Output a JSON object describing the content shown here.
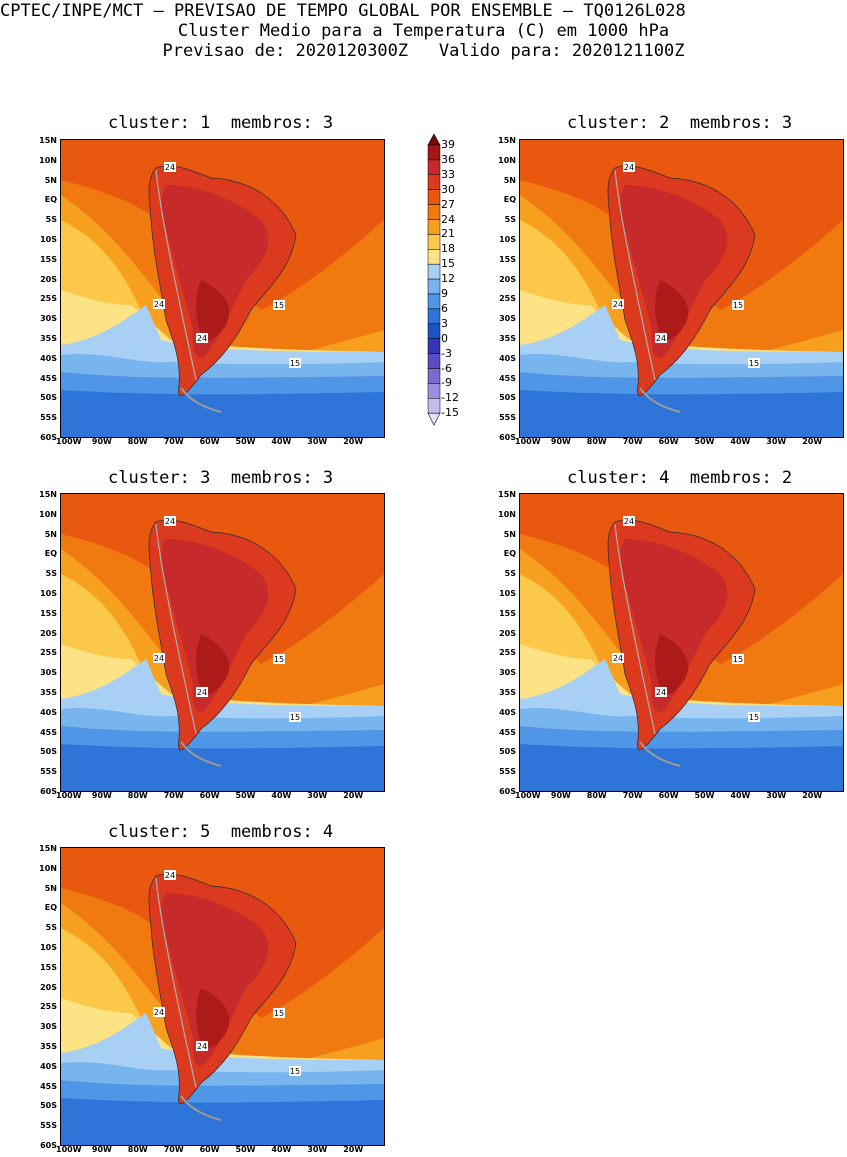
{
  "header": {
    "line1": "CPTEC/INPE/MCT – PREVISAO DE TEMPO GLOBAL POR ENSEMBLE – TQ0126L028",
    "line2": "Cluster Medio para a Temperatura (C) em 1000 hPa",
    "line3": "Previsao de: 2020120300Z   Valido para: 2020121100Z"
  },
  "panels": [
    {
      "title": "cluster: 1  membros: 3"
    },
    {
      "title": "cluster: 2  membros: 3"
    },
    {
      "title": "cluster: 3  membros: 3"
    },
    {
      "title": "cluster: 4  membros: 2"
    },
    {
      "title": "cluster: 5  membros: 4"
    }
  ],
  "y_ticks": [
    "15N",
    "10N",
    "5N",
    "EQ",
    "5S",
    "10S",
    "15S",
    "20S",
    "25S",
    "30S",
    "35S",
    "40S",
    "45S",
    "50S",
    "55S",
    "60S"
  ],
  "x_ticks": [
    "100W",
    "90W",
    "80W",
    "70W",
    "60W",
    "50W",
    "40W",
    "30W",
    "20W"
  ],
  "contour_labels": [
    "24",
    "24",
    "15",
    "24",
    "15"
  ],
  "colorbar": {
    "labels": [
      "39",
      "36",
      "33",
      "30",
      "27",
      "24",
      "21",
      "18",
      "15",
      "12",
      "9",
      "6",
      "3",
      "0",
      "-3",
      "-6",
      "-9",
      "-12",
      "-15"
    ],
    "colors": [
      "#7a0a0a",
      "#a61616",
      "#c62a2a",
      "#dc3a1e",
      "#e8580e",
      "#f07a10",
      "#f7a020",
      "#fbc84a",
      "#fde286",
      "#a8d0f5",
      "#78b4ee",
      "#4f96e6",
      "#2f74d8",
      "#1c54c4",
      "#3434b4",
      "#5a4cc4",
      "#7a6ad2",
      "#9c8ee0",
      "#c6baee",
      "#e6e0f8"
    ]
  },
  "colors": {
    "ocean_warm": "#e8580e",
    "ocean_mild": "#f7a020",
    "land_hot": "#c62a2a"
  }
}
